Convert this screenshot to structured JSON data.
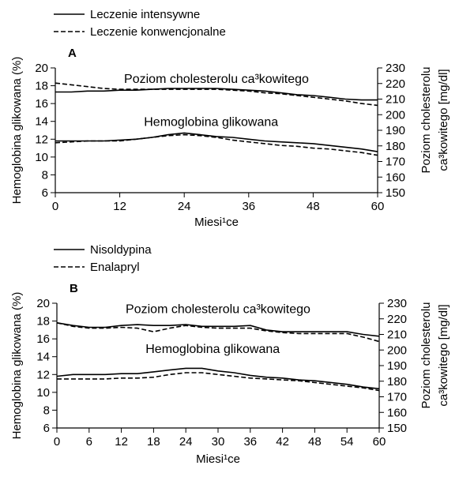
{
  "chart_data": [
    {
      "type": "line",
      "panel_label": "A",
      "xlabel": "Miesi¹ce",
      "ylabel": "Hemoglobina glikowana (%)",
      "ylabel_right": [
        "Poziom cholesterolu",
        "ca³kowitego [mg/dl]"
      ],
      "x_ticks": [
        0,
        12,
        24,
        36,
        48,
        60
      ],
      "xlim": [
        0,
        60
      ],
      "y_ticks": [
        6,
        8,
        10,
        12,
        14,
        16,
        18,
        20
      ],
      "ylim": [
        6,
        20
      ],
      "y_right_ticks": [
        150,
        160,
        170,
        180,
        190,
        200,
        210,
        220,
        230
      ],
      "y_right_lim": [
        150,
        230
      ],
      "legend": [
        {
          "label": "Leczenie intensywne",
          "style": "solid"
        },
        {
          "label": "Leczenie konwencjonalne",
          "style": "dashed"
        }
      ],
      "annotations": [
        {
          "text": "Poziom cholesterolu ca³kowitego",
          "x": 30,
          "y": 18.3
        },
        {
          "text": "Hemoglobina glikowana",
          "x": 29,
          "y": 13.5
        }
      ],
      "series": [
        {
          "style": "solid",
          "x": [
            0,
            3,
            6,
            9,
            12,
            15,
            18,
            21,
            24,
            27,
            30,
            33,
            36,
            39,
            42,
            45,
            48,
            51,
            54,
            57,
            60
          ],
          "y": [
            17.3,
            17.3,
            17.4,
            17.4,
            17.5,
            17.5,
            17.6,
            17.7,
            17.7,
            17.7,
            17.7,
            17.6,
            17.5,
            17.4,
            17.2,
            17.0,
            16.9,
            16.7,
            16.5,
            16.4,
            16.4
          ]
        },
        {
          "style": "dashed",
          "x": [
            0,
            3,
            6,
            9,
            12,
            15,
            18,
            21,
            24,
            27,
            30,
            33,
            36,
            39,
            42,
            45,
            48,
            51,
            54,
            57,
            60
          ],
          "y": [
            18.3,
            18.1,
            17.9,
            17.7,
            17.6,
            17.6,
            17.6,
            17.6,
            17.6,
            17.6,
            17.6,
            17.5,
            17.4,
            17.2,
            17.1,
            16.9,
            16.7,
            16.5,
            16.3,
            16.0,
            15.8
          ]
        },
        {
          "style": "solid",
          "x": [
            0,
            3,
            6,
            9,
            12,
            15,
            18,
            21,
            24,
            27,
            30,
            33,
            36,
            39,
            42,
            45,
            48,
            51,
            54,
            57,
            60
          ],
          "y": [
            11.8,
            11.8,
            11.8,
            11.8,
            11.9,
            12.0,
            12.2,
            12.5,
            12.7,
            12.5,
            12.3,
            12.2,
            12.0,
            11.8,
            11.7,
            11.6,
            11.5,
            11.3,
            11.1,
            10.9,
            10.6
          ]
        },
        {
          "style": "dashed",
          "x": [
            0,
            3,
            6,
            9,
            12,
            15,
            18,
            21,
            24,
            27,
            30,
            33,
            36,
            39,
            42,
            45,
            48,
            51,
            54,
            57,
            60
          ],
          "y": [
            11.6,
            11.7,
            11.8,
            11.8,
            11.8,
            12.0,
            12.2,
            12.4,
            12.5,
            12.4,
            12.2,
            11.9,
            11.7,
            11.5,
            11.3,
            11.2,
            11.0,
            10.9,
            10.7,
            10.5,
            10.2
          ]
        }
      ]
    },
    {
      "type": "line",
      "panel_label": "B",
      "xlabel": "Miesi¹ce",
      "ylabel": "Hemoglobina glikowana (%)",
      "ylabel_right": [
        "Poziom cholesterolu",
        "ca³kowitego [mg/dl]"
      ],
      "x_ticks": [
        0,
        6,
        12,
        18,
        24,
        30,
        36,
        42,
        48,
        54,
        60
      ],
      "xlim": [
        0,
        60
      ],
      "y_ticks": [
        6,
        8,
        10,
        12,
        14,
        16,
        18,
        20
      ],
      "ylim": [
        6,
        20
      ],
      "y_right_ticks": [
        150,
        160,
        170,
        180,
        190,
        200,
        210,
        220,
        230
      ],
      "y_right_lim": [
        150,
        230
      ],
      "legend": [
        {
          "label": "Nisoldypina",
          "style": "solid"
        },
        {
          "label": "Enalapryl",
          "style": "dashed"
        }
      ],
      "annotations": [
        {
          "text": "Poziom cholesterolu ca³kowitego",
          "x": 30,
          "y": 18.9
        },
        {
          "text": "Hemoglobina glikowana",
          "x": 29,
          "y": 14.4
        }
      ],
      "series": [
        {
          "style": "solid",
          "x": [
            0,
            3,
            6,
            9,
            12,
            15,
            18,
            21,
            24,
            27,
            30,
            33,
            36,
            39,
            42,
            45,
            48,
            51,
            54,
            57,
            60
          ],
          "y": [
            17.8,
            17.5,
            17.3,
            17.3,
            17.5,
            17.6,
            17.5,
            17.5,
            17.6,
            17.4,
            17.4,
            17.4,
            17.5,
            17.0,
            16.8,
            16.8,
            16.8,
            16.8,
            16.8,
            16.5,
            16.3
          ]
        },
        {
          "style": "dashed",
          "x": [
            0,
            3,
            6,
            9,
            12,
            15,
            18,
            21,
            24,
            27,
            30,
            33,
            36,
            39,
            42,
            45,
            48,
            51,
            54,
            57,
            60
          ],
          "y": [
            17.8,
            17.4,
            17.2,
            17.2,
            17.3,
            17.2,
            16.8,
            17.2,
            17.5,
            17.3,
            17.2,
            17.2,
            17.2,
            16.9,
            16.7,
            16.6,
            16.6,
            16.6,
            16.6,
            16.2,
            15.7
          ]
        },
        {
          "style": "solid",
          "x": [
            0,
            3,
            6,
            9,
            12,
            15,
            18,
            21,
            24,
            27,
            30,
            33,
            36,
            39,
            42,
            45,
            48,
            51,
            54,
            57,
            60
          ],
          "y": [
            11.8,
            12.0,
            12.0,
            12.0,
            12.1,
            12.1,
            12.3,
            12.5,
            12.7,
            12.7,
            12.4,
            12.2,
            11.9,
            11.7,
            11.6,
            11.4,
            11.3,
            11.1,
            10.9,
            10.6,
            10.4
          ]
        },
        {
          "style": "dashed",
          "x": [
            0,
            3,
            6,
            9,
            12,
            15,
            18,
            21,
            24,
            27,
            30,
            33,
            36,
            39,
            42,
            45,
            48,
            51,
            54,
            57,
            60
          ],
          "y": [
            11.5,
            11.5,
            11.5,
            11.5,
            11.6,
            11.6,
            11.7,
            12.0,
            12.2,
            12.2,
            12.0,
            11.8,
            11.6,
            11.5,
            11.4,
            11.3,
            11.1,
            10.9,
            10.7,
            10.5,
            10.2
          ]
        }
      ]
    }
  ]
}
